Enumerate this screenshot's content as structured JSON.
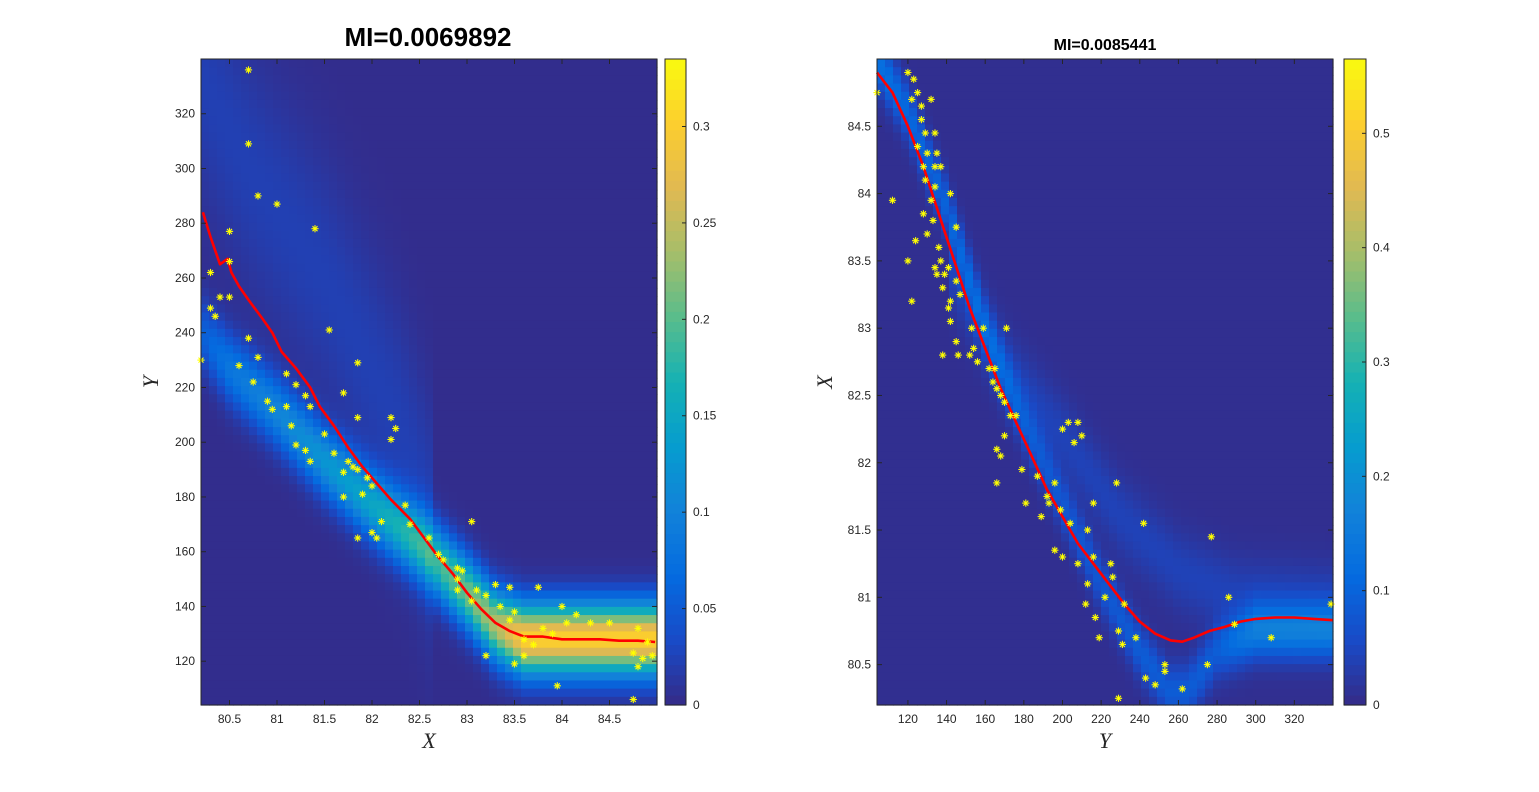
{
  "chart_data": [
    {
      "type": "heatmap",
      "title": "MI=0.0069892",
      "xlabel": "X",
      "ylabel": "Y",
      "xlim": [
        80.2,
        85.0
      ],
      "ylim": [
        104,
        340
      ],
      "xticks": [
        80.5,
        81,
        81.5,
        82,
        82.5,
        83,
        83.5,
        84,
        84.5
      ],
      "xtick_labels": [
        "80.5",
        "81",
        "81.5",
        "82",
        "82.5",
        "83",
        "83.5",
        "84",
        "84.5"
      ],
      "yticks": [
        120,
        140,
        160,
        180,
        200,
        220,
        240,
        260,
        280,
        300,
        320
      ],
      "ytick_labels": [
        "120",
        "140",
        "160",
        "180",
        "200",
        "220",
        "240",
        "260",
        "280",
        "300",
        "320"
      ],
      "colorbar": {
        "min": 0,
        "max": 0.335,
        "ticks": [
          0,
          0.05,
          0.1,
          0.15,
          0.2,
          0.25,
          0.3
        ],
        "tick_labels": [
          "0",
          "0.05",
          "0.1",
          "0.15",
          "0.2",
          "0.25",
          "0.3"
        ],
        "colormap": "parula"
      },
      "density_ridge": {
        "x": [
          80.2,
          80.5,
          81.0,
          81.5,
          82.0,
          82.5,
          83.0,
          83.3,
          83.6,
          84.0,
          84.5,
          85.0
        ],
        "y": [
          240,
          227,
          211,
          193,
          177,
          163,
          145,
          133,
          128,
          128,
          128,
          128
        ],
        "peak_values": [
          0.05,
          0.08,
          0.1,
          0.12,
          0.14,
          0.17,
          0.21,
          0.24,
          0.3,
          0.3,
          0.3,
          0.3
        ],
        "spread": 9,
        "secondary_band": {
          "x": [
            80.2,
            80.7,
            81.5,
            82.3,
            82.6
          ],
          "y": [
            334,
            300,
            260,
            205,
            172
          ],
          "peak": 0.02,
          "spread": 30
        }
      },
      "scatter": {
        "marker": "*",
        "color": "#ffff00",
        "points": [
          [
            80.7,
            336
          ],
          [
            80.7,
            309
          ],
          [
            80.8,
            290
          ],
          [
            81.0,
            287
          ],
          [
            81.4,
            278
          ],
          [
            80.5,
            277
          ],
          [
            80.3,
            262
          ],
          [
            80.5,
            266
          ],
          [
            80.4,
            253
          ],
          [
            80.5,
            253
          ],
          [
            80.3,
            249
          ],
          [
            80.35,
            246
          ],
          [
            81.55,
            241
          ],
          [
            80.7,
            238
          ],
          [
            80.2,
            230
          ],
          [
            80.6,
            228
          ],
          [
            80.8,
            231
          ],
          [
            81.85,
            229
          ],
          [
            80.75,
            222
          ],
          [
            81.1,
            225
          ],
          [
            81.2,
            221
          ],
          [
            81.3,
            217
          ],
          [
            81.7,
            218
          ],
          [
            80.9,
            215
          ],
          [
            80.95,
            212
          ],
          [
            81.1,
            213
          ],
          [
            81.35,
            213
          ],
          [
            81.85,
            209
          ],
          [
            82.2,
            209
          ],
          [
            82.25,
            205
          ],
          [
            82.2,
            201
          ],
          [
            81.15,
            206
          ],
          [
            81.5,
            203
          ],
          [
            81.2,
            199
          ],
          [
            81.3,
            197
          ],
          [
            81.6,
            196
          ],
          [
            81.35,
            193
          ],
          [
            81.75,
            193
          ],
          [
            81.8,
            191
          ],
          [
            81.7,
            189
          ],
          [
            81.85,
            190
          ],
          [
            81.95,
            187
          ],
          [
            82.0,
            184
          ],
          [
            81.7,
            180
          ],
          [
            81.9,
            181
          ],
          [
            82.35,
            177
          ],
          [
            82.1,
            171
          ],
          [
            82.4,
            170
          ],
          [
            82.0,
            167
          ],
          [
            82.05,
            165
          ],
          [
            81.85,
            165
          ],
          [
            82.6,
            165
          ],
          [
            82.7,
            159
          ],
          [
            82.75,
            157
          ],
          [
            83.05,
            171
          ],
          [
            82.9,
            154
          ],
          [
            82.95,
            153
          ],
          [
            82.9,
            150
          ],
          [
            82.9,
            146
          ],
          [
            83.1,
            146
          ],
          [
            83.3,
            148
          ],
          [
            83.45,
            147
          ],
          [
            83.75,
            147
          ],
          [
            83.2,
            144
          ],
          [
            83.05,
            142
          ],
          [
            83.35,
            140
          ],
          [
            83.5,
            138
          ],
          [
            83.45,
            135
          ],
          [
            84.0,
            140
          ],
          [
            84.15,
            137
          ],
          [
            84.05,
            134
          ],
          [
            84.3,
            134
          ],
          [
            84.5,
            134
          ],
          [
            84.8,
            132
          ],
          [
            83.8,
            132
          ],
          [
            83.9,
            130
          ],
          [
            83.6,
            128
          ],
          [
            83.7,
            126
          ],
          [
            84.9,
            127
          ],
          [
            84.75,
            123
          ],
          [
            84.85,
            121
          ],
          [
            84.95,
            122
          ],
          [
            83.6,
            122
          ],
          [
            83.2,
            122
          ],
          [
            83.5,
            119
          ],
          [
            84.8,
            118
          ],
          [
            83.95,
            111
          ],
          [
            84.75,
            106
          ]
        ]
      },
      "line": {
        "color": "#ff0000",
        "x": [
          80.22,
          80.3,
          80.4,
          80.48,
          80.52,
          80.6,
          80.7,
          80.85,
          80.95,
          81.05,
          81.2,
          81.35,
          81.45,
          81.6,
          81.75,
          81.9,
          82.05,
          82.2,
          82.4,
          82.55,
          82.7,
          82.85,
          83.0,
          83.15,
          83.3,
          83.45,
          83.6,
          83.8,
          84.0,
          84.2,
          84.4,
          84.6,
          84.8,
          84.98
        ],
        "y": [
          284,
          275,
          265,
          267,
          262,
          257,
          252,
          245,
          240,
          233,
          227,
          220,
          213,
          206,
          198,
          191,
          185,
          179,
          172,
          165,
          158,
          152,
          145,
          139,
          134,
          131,
          129,
          129,
          128,
          128,
          128,
          127.5,
          127.5,
          127
        ]
      }
    },
    {
      "type": "heatmap",
      "title": "MI=0.0085441",
      "xlabel": "Y",
      "ylabel": "X",
      "xlim": [
        104,
        340
      ],
      "ylim": [
        80.2,
        85.0
      ],
      "xticks": [
        120,
        140,
        160,
        180,
        200,
        220,
        240,
        260,
        280,
        300,
        320
      ],
      "xtick_labels": [
        "120",
        "140",
        "160",
        "180",
        "200",
        "220",
        "240",
        "260",
        "280",
        "300",
        "320"
      ],
      "yticks": [
        80.5,
        81,
        81.5,
        82,
        82.5,
        83,
        83.5,
        84,
        84.5
      ],
      "ytick_labels": [
        "80.5",
        "81",
        "81.5",
        "82",
        "82.5",
        "83",
        "83.5",
        "84",
        "84.5"
      ],
      "colorbar": {
        "min": 0,
        "max": 0.565,
        "ticks": [
          0,
          0.1,
          0.2,
          0.3,
          0.4,
          0.5
        ],
        "tick_labels": [
          "0",
          "0.1",
          "0.2",
          "0.3",
          "0.4",
          "0.5"
        ],
        "colormap": "parula"
      },
      "density_ridge": {
        "x": [
          104,
          120,
          140,
          160,
          180,
          200,
          220,
          240,
          255,
          265,
          280,
          300,
          320,
          340
        ],
        "y": [
          85.0,
          84.6,
          83.9,
          83.0,
          82.3,
          81.7,
          81.1,
          80.6,
          80.3,
          80.3,
          80.6,
          80.75,
          80.75,
          80.75
        ],
        "peak_values": [
          0.12,
          0.1,
          0.09,
          0.08,
          0.07,
          0.07,
          0.07,
          0.08,
          0.08,
          0.08,
          0.08,
          0.14,
          0.14,
          0.14
        ],
        "spread": 0.14,
        "secondary_band": {
          "x": [
            140,
            170,
            200,
            230,
            260,
            290,
            340
          ],
          "y": [
            83.5,
            82.7,
            82.2,
            81.6,
            81.2,
            81.0,
            80.95
          ],
          "peak": 0.035,
          "spread": 0.2
        }
      },
      "scatter": {
        "marker": "*",
        "color": "#ffff00",
        "points": [
          [
            104,
            84.75
          ],
          [
            112,
            83.95
          ],
          [
            120,
            84.9
          ],
          [
            123,
            84.85
          ],
          [
            122,
            84.7
          ],
          [
            125,
            84.75
          ],
          [
            127,
            84.65
          ],
          [
            132,
            84.7
          ],
          [
            127,
            84.55
          ],
          [
            129,
            84.45
          ],
          [
            134,
            84.45
          ],
          [
            125,
            84.35
          ],
          [
            130,
            84.3
          ],
          [
            135,
            84.3
          ],
          [
            128,
            84.2
          ],
          [
            134,
            84.2
          ],
          [
            137,
            84.2
          ],
          [
            129,
            84.1
          ],
          [
            134,
            84.05
          ],
          [
            142,
            84.0
          ],
          [
            132,
            83.95
          ],
          [
            128,
            83.85
          ],
          [
            133,
            83.8
          ],
          [
            145,
            83.75
          ],
          [
            124,
            83.65
          ],
          [
            130,
            83.7
          ],
          [
            136,
            83.6
          ],
          [
            120,
            83.5
          ],
          [
            134,
            83.45
          ],
          [
            137,
            83.5
          ],
          [
            141,
            83.45
          ],
          [
            135,
            83.4
          ],
          [
            139,
            83.4
          ],
          [
            145,
            83.35
          ],
          [
            138,
            83.3
          ],
          [
            147,
            83.25
          ],
          [
            142,
            83.2
          ],
          [
            122,
            83.2
          ],
          [
            141,
            83.15
          ],
          [
            142,
            83.05
          ],
          [
            153,
            83.0
          ],
          [
            159,
            83.0
          ],
          [
            171,
            83.0
          ],
          [
            145,
            82.9
          ],
          [
            154,
            82.85
          ],
          [
            152,
            82.8
          ],
          [
            138,
            82.8
          ],
          [
            146,
            82.8
          ],
          [
            156,
            82.75
          ],
          [
            162,
            82.7
          ],
          [
            165,
            82.7
          ],
          [
            164,
            82.6
          ],
          [
            166,
            82.55
          ],
          [
            168,
            82.5
          ],
          [
            170,
            82.45
          ],
          [
            173,
            82.35
          ],
          [
            176,
            82.35
          ],
          [
            170,
            82.2
          ],
          [
            166,
            82.1
          ],
          [
            168,
            82.05
          ],
          [
            203,
            82.3
          ],
          [
            208,
            82.3
          ],
          [
            200,
            82.25
          ],
          [
            210,
            82.2
          ],
          [
            206,
            82.15
          ],
          [
            179,
            81.95
          ],
          [
            187,
            81.9
          ],
          [
            166,
            81.85
          ],
          [
            196,
            81.85
          ],
          [
            228,
            81.85
          ],
          [
            192,
            81.75
          ],
          [
            193,
            81.7
          ],
          [
            181,
            81.7
          ],
          [
            199,
            81.65
          ],
          [
            189,
            81.6
          ],
          [
            216,
            81.7
          ],
          [
            204,
            81.55
          ],
          [
            242,
            81.55
          ],
          [
            213,
            81.5
          ],
          [
            277,
            81.45
          ],
          [
            196,
            81.35
          ],
          [
            200,
            81.3
          ],
          [
            216,
            81.3
          ],
          [
            208,
            81.25
          ],
          [
            225,
            81.25
          ],
          [
            226,
            81.15
          ],
          [
            213,
            81.1
          ],
          [
            222,
            81.0
          ],
          [
            212,
            80.95
          ],
          [
            232,
            80.95
          ],
          [
            286,
            81.0
          ],
          [
            217,
            80.85
          ],
          [
            289,
            80.8
          ],
          [
            339,
            80.95
          ],
          [
            229,
            80.75
          ],
          [
            219,
            80.7
          ],
          [
            238,
            80.7
          ],
          [
            308,
            80.7
          ],
          [
            231,
            80.65
          ],
          [
            275,
            80.5
          ],
          [
            253,
            80.5
          ],
          [
            253,
            80.45
          ],
          [
            243,
            80.4
          ],
          [
            248,
            80.35
          ],
          [
            262,
            80.32
          ],
          [
            229,
            80.25
          ]
        ]
      },
      "line": {
        "color": "#ff0000",
        "x": [
          104,
          112,
          120,
          128,
          136,
          144,
          152,
          160,
          168,
          176,
          184,
          192,
          200,
          208,
          216,
          224,
          232,
          240,
          248,
          256,
          262,
          268,
          276,
          284,
          292,
          300,
          310,
          320,
          330,
          340
        ],
        "y": [
          84.9,
          84.75,
          84.5,
          84.2,
          83.85,
          83.5,
          83.15,
          82.85,
          82.55,
          82.3,
          82.05,
          81.8,
          81.6,
          81.4,
          81.25,
          81.1,
          80.95,
          80.82,
          80.73,
          80.68,
          80.67,
          80.7,
          80.75,
          80.78,
          80.82,
          80.84,
          80.85,
          80.85,
          80.84,
          80.83
        ]
      }
    }
  ]
}
